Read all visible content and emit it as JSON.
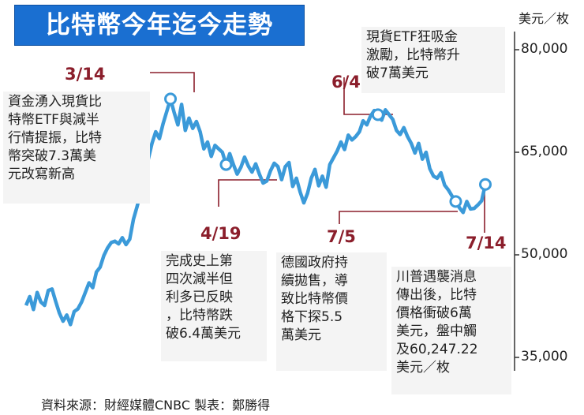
{
  "title": "比特幣今年迄今走勢",
  "unit_label": "美元／枚",
  "source": "資料來源：財經媒體CNBC  製表：鄭勝得",
  "colors": {
    "line": "#3b9ad9",
    "title_bg": "#1a6fd1",
    "date_text": "#8b1e2b",
    "note_bg": "#f4f4f4"
  },
  "annotations": [
    {
      "date": "3/14",
      "text": "資金湧入現貨比\n特幣ETF與減半\n行情提振，比特\n幣突破7.3萬美\n元改寫新高"
    },
    {
      "date": "4/19",
      "text": "完成史上第\n四次減半但\n利多已反映\n，比特幣跌\n破6.4萬美元"
    },
    {
      "date": "6/4",
      "text": "現貨ETF狂吸金\n激勵，比特幣升\n破7萬美元"
    },
    {
      "date": "7/5",
      "text": "德國政府持\n續拋售，導\n致比特幣價\n格下探5.5\n萬美元"
    },
    {
      "date": "7/14",
      "text": "川普遇襲消息\n傳出後，比特\n價格衝破6萬\n美元，盤中觸\n及60,247.22\n美元／枚"
    }
  ],
  "chart_data": {
    "type": "line",
    "title": "比特幣今年迄今走勢",
    "xlabel": "",
    "ylabel": "美元／枚",
    "ylim": [
      35000,
      80000
    ],
    "yticks": [
      "80,000",
      "65,000",
      "50,000",
      "35,000"
    ],
    "grid": false,
    "series": [
      {
        "values": [
          42600,
          43900,
          42000,
          44500,
          43100,
          42600,
          44800,
          45000,
          43200,
          41500,
          40300,
          41200,
          39800,
          41700,
          42100,
          43100,
          44500,
          45900,
          45200,
          47500,
          48200,
          49900,
          51000,
          51800,
          52000,
          51600,
          52500,
          51500,
          52300,
          55200,
          57100,
          59300,
          61800,
          64000,
          66300,
          68000,
          67000,
          69200,
          71000,
          72800,
          70800,
          69000,
          72000,
          68200,
          70000,
          68500,
          69500,
          68000,
          65500,
          66500,
          64400,
          66000,
          65500,
          65000,
          63200,
          64800,
          63200,
          61800,
          62800,
          64300,
          63000,
          62100,
          63300,
          61800,
          60500,
          60800,
          62300,
          63400,
          62900,
          61000,
          62900,
          63500,
          60000,
          61200,
          59200,
          57600,
          59000,
          61200,
          62500,
          60100,
          61500,
          59900,
          63200,
          64200,
          65200,
          66500,
          65400,
          67500,
          66800,
          67300,
          68000,
          69600,
          69000,
          70300,
          71100,
          70500,
          69700,
          71200,
          70500,
          69800,
          68200,
          67600,
          68600,
          67300,
          66300,
          64900,
          66300,
          64000,
          65000,
          62600,
          61500,
          61200,
          62000,
          60200,
          59500,
          58600,
          57800,
          56900,
          56200,
          57800,
          56700,
          56800,
          57300,
          57900,
          60300
        ]
      }
    ]
  }
}
